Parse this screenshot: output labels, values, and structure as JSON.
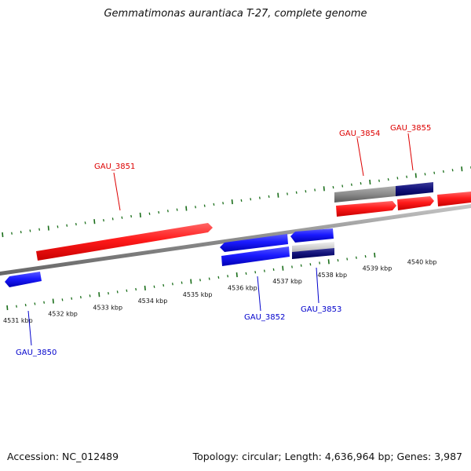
{
  "title": "Gemmatimonas aurantiaca T-27, complete genome",
  "footer": {
    "accession": "Accession: NC_012489",
    "info": "Topology: circular; Length: 4,636,964 bp; Genes: 3,987"
  },
  "ticks": {
    "labels": [
      "4531 kbp",
      "4532 kbp",
      "4533 kbp",
      "4534 kbp",
      "4535 kbp",
      "4536 kbp",
      "4537 kbp",
      "4538 kbp",
      "4539 kbp",
      "4540 kbp"
    ]
  },
  "genes": [
    {
      "name": "GAU_3850",
      "strand": "reverse",
      "color": "#0000cc"
    },
    {
      "name": "GAU_3851",
      "strand": "forward",
      "color": "#dd0000"
    },
    {
      "name": "GAU_3852",
      "strand": "reverse",
      "color": "#0000cc"
    },
    {
      "name": "GAU_3853",
      "strand": "reverse",
      "color": "#0000cc"
    },
    {
      "name": "GAU_3854",
      "strand": "forward",
      "color": "#dd0000"
    },
    {
      "name": "GAU_3855",
      "strand": "forward",
      "color": "#dd0000"
    }
  ],
  "colors": {
    "forward": "#ee1111",
    "reverse": "#1111ee",
    "backbone": "#888888",
    "tick": "#1a6e1a"
  }
}
